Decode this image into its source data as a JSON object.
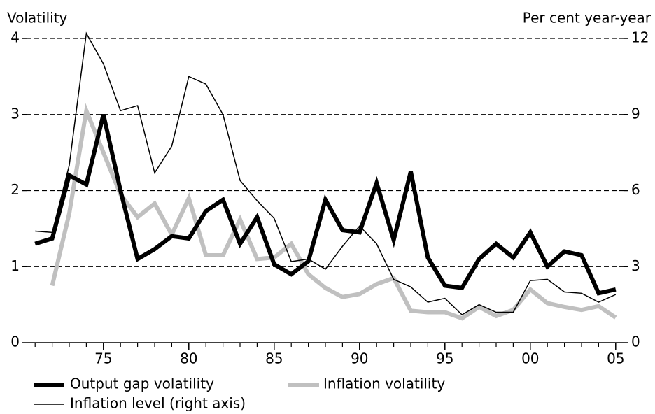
{
  "chart_data": {
    "type": "line",
    "y_label": "Volatility",
    "y2_label": "Per cent year-year",
    "x": [
      1971,
      1972,
      1973,
      1974,
      1975,
      1976,
      1977,
      1978,
      1979,
      1980,
      1981,
      1982,
      1983,
      1984,
      1985,
      1986,
      1987,
      1988,
      1989,
      1990,
      1991,
      1992,
      1993,
      1994,
      1995,
      1996,
      1997,
      1998,
      1999,
      2000,
      2001,
      2002,
      2003,
      2004,
      2005
    ],
    "xlim": [
      1970.5,
      2005.5
    ],
    "xticks": [
      {
        "value": 1975,
        "label": "75"
      },
      {
        "value": 1980,
        "label": "80"
      },
      {
        "value": 1985,
        "label": "85"
      },
      {
        "value": 1990,
        "label": "90"
      },
      {
        "value": 1995,
        "label": "95"
      },
      {
        "value": 2000,
        "label": "00"
      },
      {
        "value": 2005,
        "label": "05"
      }
    ],
    "ylim": [
      0,
      4
    ],
    "yticks": [
      0,
      1,
      2,
      3,
      4
    ],
    "y2lim": [
      0,
      12
    ],
    "y2ticks": [
      0,
      3,
      6,
      9,
      12
    ],
    "grid": true,
    "series": [
      {
        "name": "Output gap volatility",
        "color": "#000000",
        "values": [
          1.3,
          1.37,
          2.2,
          2.08,
          3.0,
          2.0,
          1.1,
          1.23,
          1.4,
          1.37,
          1.73,
          1.88,
          1.3,
          1.65,
          1.03,
          0.9,
          1.07,
          1.88,
          1.48,
          1.45,
          2.1,
          1.35,
          2.25,
          1.12,
          0.75,
          0.72,
          1.1,
          1.3,
          1.12,
          1.45,
          1.0,
          1.2,
          1.15,
          0.65,
          0.7
        ]
      },
      {
        "name": "Inflation volatility",
        "color": "#c0c0c0",
        "values": [
          null,
          0.75,
          1.7,
          3.05,
          2.5,
          1.95,
          1.65,
          1.83,
          1.42,
          1.9,
          1.15,
          1.15,
          1.62,
          1.1,
          1.12,
          1.3,
          0.9,
          0.72,
          0.6,
          0.64,
          0.77,
          0.85,
          0.42,
          0.4,
          0.4,
          0.32,
          0.47,
          0.35,
          0.43,
          0.7,
          0.52,
          0.47,
          0.43,
          0.48,
          0.33
        ]
      },
      {
        "name": "Inflation level (right axis)",
        "color": "#000000",
        "axis": "y2",
        "values": [
          4.4,
          4.35,
          7.0,
          12.2,
          11.0,
          9.15,
          9.35,
          6.7,
          7.75,
          10.5,
          10.2,
          9.0,
          6.4,
          5.6,
          4.9,
          3.2,
          3.3,
          2.9,
          3.8,
          4.6,
          3.9,
          2.5,
          2.2,
          1.6,
          1.75,
          1.1,
          1.5,
          1.2,
          1.2,
          2.45,
          2.5,
          2.0,
          1.95,
          1.6,
          1.9
        ]
      }
    ]
  }
}
